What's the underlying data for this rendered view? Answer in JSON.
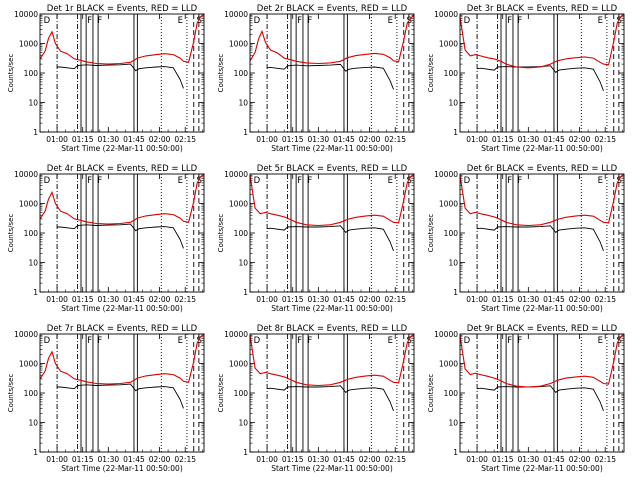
{
  "chart_data": {
    "type": "line",
    "layout_grid": "3x3",
    "shared": {
      "ylabel": "Counts/sec",
      "xlabel": "Start Time (22-Mar-11 00:50:00)",
      "x_ticks": [
        "01:00",
        "01:15",
        "01:30",
        "01:45",
        "02:00",
        "02:15"
      ],
      "x_tick_minutes": [
        10,
        25,
        40,
        55,
        70,
        85
      ],
      "xlim_minutes_after_start": [
        0,
        96
      ],
      "y_scale": "log",
      "ylim": [
        1,
        10000
      ],
      "y_ticks": [
        "1",
        "10",
        "100",
        "1000",
        "10000"
      ],
      "y_tick_values": [
        1,
        10,
        100,
        1000,
        10000
      ],
      "series_names": [
        "BLACK = Events",
        "RED = LLD"
      ],
      "colors": {
        "events": "#000000",
        "lld": "#dd0000"
      }
    },
    "panels": [
      {
        "title": "Det 1r  BLACK = Events, RED = LLD",
        "markers": [
          "D",
          "F",
          "F",
          "E",
          "S"
        ],
        "x": [
          0,
          3,
          5,
          7,
          9,
          12,
          16,
          20,
          24,
          27,
          33,
          40,
          47,
          53,
          57,
          62,
          68,
          73,
          78,
          82,
          84,
          87,
          90,
          92,
          94,
          96
        ],
        "lld": [
          300,
          550,
          1500,
          2500,
          1000,
          550,
          450,
          300,
          270,
          240,
          210,
          200,
          210,
          230,
          320,
          380,
          420,
          450,
          420,
          320,
          250,
          230,
          1200,
          5000,
          8000,
          10000
        ],
        "events_x": [
          10,
          12,
          20,
          22,
          27,
          33,
          40,
          47,
          53,
          56,
          58,
          62,
          68,
          73,
          78,
          82,
          84
        ],
        "events": [
          160,
          160,
          140,
          180,
          190,
          180,
          185,
          190,
          200,
          120,
          140,
          150,
          160,
          165,
          150,
          60,
          30
        ],
        "vlines": {
          "solid": [
            24,
            27,
            31,
            34,
            55,
            57
          ],
          "dashdot": [
            10,
            22
          ],
          "dotted": [
            71,
            86
          ],
          "dashed": [
            90,
            93
          ]
        }
      },
      {
        "title": "Det 2r  BLACK = Events, RED = LLD",
        "markers": [
          "D",
          "F",
          "F",
          "E",
          "S"
        ],
        "x": [
          0,
          3,
          5,
          7,
          9,
          12,
          16,
          20,
          24,
          27,
          33,
          40,
          47,
          53,
          57,
          62,
          68,
          73,
          78,
          82,
          84,
          87,
          90,
          92,
          94,
          96
        ],
        "lld": [
          260,
          500,
          1400,
          2600,
          1100,
          600,
          480,
          320,
          280,
          250,
          220,
          210,
          220,
          250,
          330,
          390,
          430,
          460,
          430,
          330,
          260,
          240,
          1300,
          4800,
          7000,
          9500
        ],
        "events_x": [
          10,
          12,
          20,
          22,
          27,
          33,
          40,
          47,
          53,
          56,
          58,
          62,
          68,
          73,
          78,
          82,
          84
        ],
        "events": [
          150,
          155,
          135,
          175,
          185,
          175,
          180,
          185,
          195,
          115,
          135,
          145,
          155,
          160,
          145,
          55,
          28
        ],
        "vlines": {
          "solid": [
            24,
            27,
            31,
            34,
            55,
            57
          ],
          "dashdot": [
            10,
            22
          ],
          "dotted": [
            71,
            86
          ],
          "dashed": [
            90,
            93
          ]
        }
      },
      {
        "title": "Det 3r  BLACK = Events, RED = LLD",
        "markers": [
          "D",
          "F",
          "F",
          "E",
          "S"
        ],
        "x": [
          0,
          3,
          6,
          9,
          12,
          16,
          20,
          24,
          27,
          33,
          40,
          47,
          53,
          57,
          62,
          68,
          73,
          78,
          82,
          84,
          87,
          90,
          92,
          94,
          96
        ],
        "lld": [
          8000,
          600,
          380,
          420,
          380,
          330,
          300,
          250,
          200,
          160,
          150,
          160,
          200,
          260,
          300,
          330,
          350,
          320,
          230,
          200,
          190,
          1200,
          4800,
          8000,
          10000
        ],
        "events_x": [
          10,
          12,
          20,
          22,
          27,
          33,
          40,
          47,
          53,
          56,
          58,
          62,
          68,
          73,
          78,
          82,
          84
        ],
        "events": [
          140,
          145,
          125,
          160,
          165,
          160,
          160,
          165,
          175,
          105,
          125,
          135,
          145,
          150,
          135,
          50,
          25
        ],
        "vlines": {
          "solid": [
            24,
            27,
            31,
            34,
            55,
            57
          ],
          "dashdot": [
            10,
            22
          ],
          "dotted": [
            71,
            86
          ],
          "dashed": [
            90,
            93
          ]
        }
      },
      {
        "title": "Det 4r  BLACK = Events, RED = LLD",
        "markers": [
          "D",
          "F",
          "F",
          "E",
          "S"
        ],
        "x": [
          0,
          3,
          5,
          7,
          9,
          12,
          16,
          20,
          24,
          27,
          33,
          40,
          47,
          53,
          57,
          62,
          68,
          73,
          78,
          82,
          84,
          87,
          90,
          92,
          94,
          96
        ],
        "lld": [
          300,
          550,
          1400,
          2400,
          1000,
          550,
          450,
          300,
          270,
          240,
          210,
          200,
          210,
          230,
          320,
          380,
          420,
          450,
          420,
          320,
          250,
          230,
          1200,
          5000,
          8000,
          10000
        ],
        "events_x": [
          10,
          12,
          20,
          22,
          27,
          33,
          40,
          47,
          53,
          56,
          58,
          62,
          68,
          73,
          78,
          82,
          84
        ],
        "events": [
          160,
          160,
          140,
          180,
          190,
          180,
          185,
          190,
          200,
          120,
          140,
          150,
          160,
          165,
          150,
          60,
          30
        ],
        "vlines": {
          "solid": [
            24,
            27,
            31,
            34,
            55,
            57
          ],
          "dashdot": [
            10,
            22
          ],
          "dotted": [
            71,
            86
          ],
          "dashed": [
            90,
            93
          ]
        }
      },
      {
        "title": "Det 5r  BLACK = Events, RED = LLD",
        "markers": [
          "D",
          "F",
          "F",
          "E",
          "S"
        ],
        "x": [
          0,
          3,
          6,
          9,
          12,
          16,
          20,
          24,
          27,
          33,
          40,
          47,
          53,
          57,
          62,
          68,
          73,
          78,
          82,
          84,
          87,
          90,
          92,
          94,
          96
        ],
        "lld": [
          9000,
          700,
          450,
          500,
          450,
          400,
          350,
          280,
          230,
          190,
          180,
          190,
          230,
          290,
          340,
          380,
          400,
          370,
          270,
          230,
          220,
          1300,
          5000,
          8000,
          10000
        ],
        "events_x": [
          10,
          12,
          20,
          22,
          27,
          33,
          40,
          47,
          53,
          56,
          58,
          62,
          68,
          73,
          78,
          82,
          84
        ],
        "events": [
          140,
          145,
          125,
          160,
          165,
          160,
          160,
          165,
          175,
          105,
          125,
          135,
          145,
          150,
          135,
          50,
          25
        ],
        "vlines": {
          "solid": [
            24,
            27,
            31,
            34,
            55,
            57
          ],
          "dashdot": [
            10,
            22
          ],
          "dotted": [
            71,
            86
          ],
          "dashed": [
            90,
            93
          ]
        }
      },
      {
        "title": "Det 6r  BLACK = Events, RED = LLD",
        "markers": [
          "D",
          "F",
          "F",
          "E",
          "S"
        ],
        "x": [
          0,
          3,
          6,
          9,
          12,
          16,
          20,
          24,
          27,
          33,
          40,
          47,
          53,
          57,
          62,
          68,
          73,
          78,
          82,
          84,
          87,
          90,
          92,
          94,
          96
        ],
        "lld": [
          9000,
          700,
          450,
          500,
          450,
          400,
          350,
          280,
          230,
          190,
          180,
          190,
          230,
          290,
          340,
          380,
          400,
          370,
          270,
          230,
          220,
          1300,
          5000,
          8000,
          10000
        ],
        "events_x": [
          10,
          12,
          20,
          22,
          27,
          33,
          40,
          47,
          53,
          56,
          58,
          62,
          68,
          73,
          78,
          82,
          84
        ],
        "events": [
          140,
          145,
          125,
          160,
          165,
          160,
          160,
          165,
          175,
          105,
          125,
          135,
          145,
          150,
          135,
          50,
          25
        ],
        "vlines": {
          "solid": [
            24,
            27,
            31,
            34,
            55,
            57
          ],
          "dashdot": [
            10,
            22
          ],
          "dotted": [
            71,
            86
          ],
          "dashed": [
            90,
            93
          ]
        }
      },
      {
        "title": "Det 7r  BLACK = Events, RED = LLD",
        "markers": [
          "D",
          "F",
          "F",
          "E",
          "S"
        ],
        "x": [
          0,
          3,
          5,
          7,
          9,
          12,
          16,
          20,
          24,
          27,
          33,
          40,
          47,
          53,
          57,
          62,
          68,
          73,
          78,
          82,
          84,
          87,
          90,
          92,
          94,
          96
        ],
        "lld": [
          300,
          550,
          1500,
          2500,
          1000,
          550,
          450,
          300,
          270,
          240,
          210,
          200,
          210,
          230,
          320,
          380,
          420,
          450,
          420,
          320,
          250,
          230,
          1200,
          5000,
          8000,
          10000
        ],
        "events_x": [
          10,
          12,
          20,
          22,
          27,
          33,
          40,
          47,
          53,
          56,
          58,
          62,
          68,
          73,
          78,
          82,
          84
        ],
        "events": [
          160,
          160,
          140,
          180,
          190,
          180,
          185,
          190,
          200,
          120,
          140,
          150,
          160,
          165,
          150,
          60,
          30
        ],
        "vlines": {
          "solid": [
            24,
            27,
            31,
            34,
            55,
            57
          ],
          "dashdot": [
            10,
            22
          ],
          "dotted": [
            71,
            86
          ],
          "dashed": [
            90,
            93
          ]
        }
      },
      {
        "title": "Det 8r  BLACK = Events, RED = LLD",
        "markers": [
          "D",
          "F",
          "F",
          "E",
          "S"
        ],
        "x": [
          0,
          3,
          6,
          9,
          12,
          16,
          20,
          24,
          27,
          33,
          40,
          47,
          53,
          57,
          62,
          68,
          73,
          78,
          82,
          84,
          87,
          90,
          92,
          94,
          96
        ],
        "lld": [
          9000,
          700,
          450,
          500,
          450,
          400,
          350,
          280,
          230,
          190,
          180,
          190,
          230,
          290,
          340,
          380,
          400,
          370,
          270,
          230,
          220,
          1300,
          5000,
          8000,
          10000
        ],
        "events_x": [
          10,
          12,
          20,
          22,
          27,
          33,
          40,
          47,
          53,
          56,
          58,
          62,
          68,
          73,
          78,
          82,
          84
        ],
        "events": [
          140,
          145,
          125,
          160,
          165,
          160,
          160,
          165,
          175,
          105,
          125,
          135,
          145,
          150,
          135,
          50,
          25
        ],
        "vlines": {
          "solid": [
            24,
            27,
            31,
            34,
            55,
            57
          ],
          "dashdot": [
            10,
            22
          ],
          "dotted": [
            71,
            86
          ],
          "dashed": [
            90,
            93
          ]
        }
      },
      {
        "title": "Det 9r  BLACK = Events, RED = LLD",
        "markers": [
          "D",
          "F",
          "F",
          "E",
          "S"
        ],
        "x": [
          0,
          3,
          6,
          9,
          12,
          16,
          20,
          24,
          27,
          33,
          40,
          47,
          53,
          57,
          62,
          68,
          73,
          78,
          82,
          84,
          87,
          90,
          92,
          94,
          96
        ],
        "lld": [
          9000,
          650,
          420,
          470,
          420,
          370,
          320,
          260,
          210,
          170,
          160,
          170,
          210,
          270,
          320,
          350,
          370,
          340,
          250,
          210,
          200,
          1200,
          4800,
          8000,
          10000
        ],
        "events_x": [
          10,
          12,
          20,
          22,
          27,
          33,
          40,
          47,
          53,
          56,
          58,
          62,
          68,
          73,
          78,
          82,
          84
        ],
        "events": [
          140,
          145,
          125,
          160,
          165,
          160,
          160,
          165,
          175,
          105,
          125,
          135,
          145,
          150,
          135,
          50,
          25
        ],
        "vlines": {
          "solid": [
            24,
            27,
            31,
            34,
            55,
            57
          ],
          "dashdot": [
            10,
            22
          ],
          "dotted": [
            71,
            86
          ],
          "dashed": [
            90,
            93
          ]
        }
      }
    ]
  }
}
